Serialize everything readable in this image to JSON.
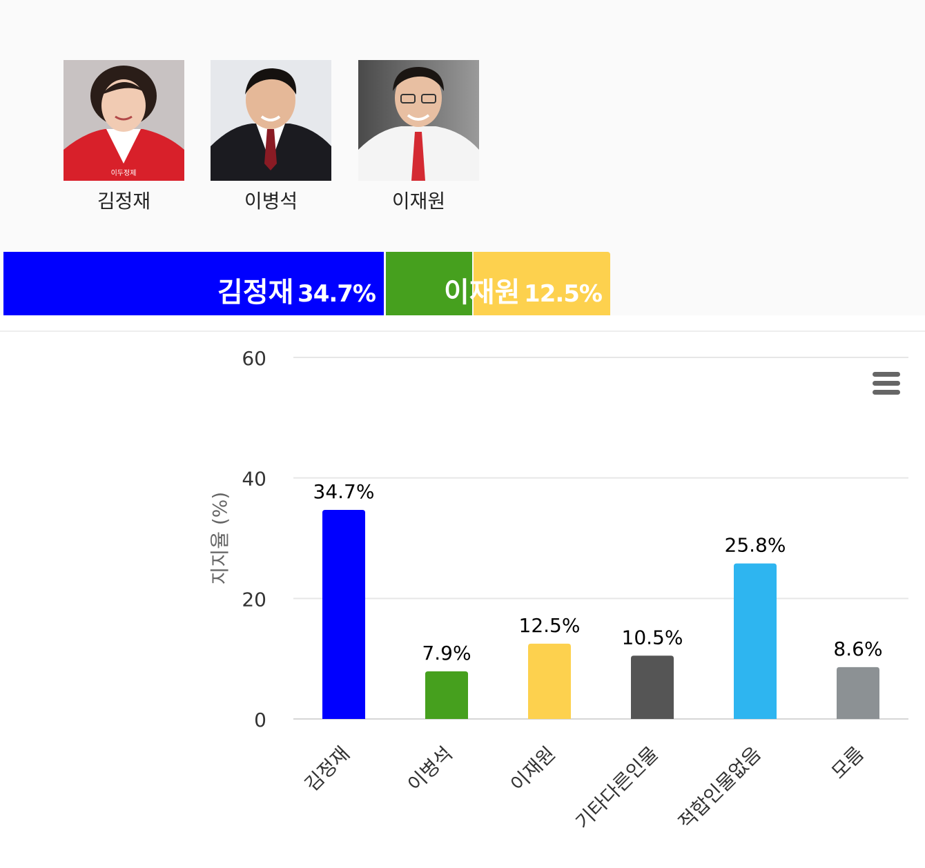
{
  "candidates": [
    {
      "name": "김정재",
      "caption": "이두정제"
    },
    {
      "name": "이병석"
    },
    {
      "name": "이재원"
    }
  ],
  "summary_bar": [
    {
      "name": "김정재",
      "percent": "34.7%",
      "value": 34.7,
      "color": "#0000ff",
      "show_label": true
    },
    {
      "name": "이병석",
      "percent": "7.9%",
      "value": 7.9,
      "color": "#46a01e",
      "show_label": false
    },
    {
      "name": "이재원",
      "percent": "12.5%",
      "value": 12.5,
      "color": "#fdd14e",
      "show_label": true
    }
  ],
  "chart_data": {
    "type": "bar",
    "categories": [
      "김정재",
      "이병석",
      "이재원",
      "기타다른인물",
      "적합인물없음",
      "모름"
    ],
    "values": [
      34.7,
      7.9,
      12.5,
      10.5,
      25.8,
      8.6
    ],
    "data_labels": [
      "34.7%",
      "7.9%",
      "12.5%",
      "10.5%",
      "25.8%",
      "8.6%"
    ],
    "colors": [
      "#0000ff",
      "#46a01e",
      "#fdd14e",
      "#555555",
      "#2eb5f0",
      "#8c9194"
    ],
    "title": "",
    "xlabel": "",
    "ylabel": "지지율 (%)",
    "ylim": [
      0,
      60
    ],
    "yticks": [
      0,
      20,
      40,
      60
    ],
    "grid": true,
    "legend": "none"
  }
}
